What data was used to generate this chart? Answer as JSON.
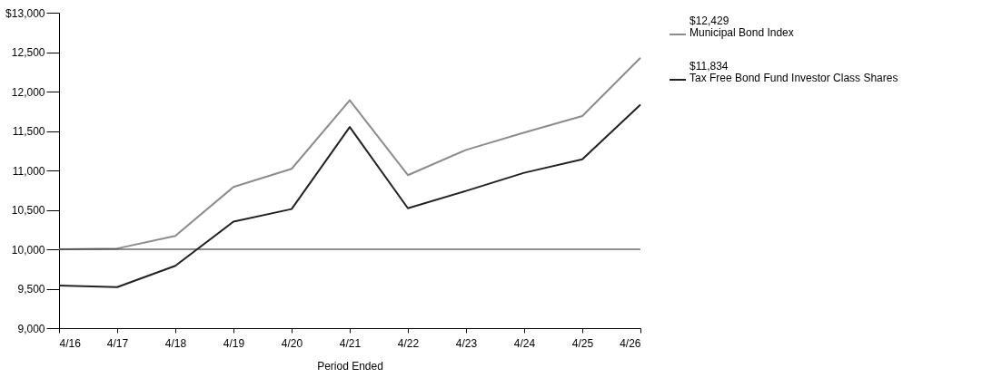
{
  "chart_data": {
    "type": "line",
    "xlabel": "Period Ended",
    "categories": [
      "4/16",
      "4/17",
      "4/18",
      "4/19",
      "4/20",
      "4/21",
      "4/22",
      "4/23",
      "4/24",
      "4/25",
      "4/26"
    ],
    "series": [
      {
        "name": "Municipal Bond Index",
        "color": "#8c8c8c",
        "values": [
          10000,
          10010,
          10170,
          10790,
          11020,
          11890,
          10940,
          11260,
          11480,
          11690,
          12429
        ]
      },
      {
        "name": "Tax Free Bond Fund Investor Class Shares",
        "color": "#222222",
        "values": [
          9540,
          9520,
          9790,
          10350,
          10510,
          11550,
          10520,
          10740,
          10970,
          11140,
          11834
        ]
      }
    ],
    "annotations": [
      "$12,429",
      "$11,834"
    ],
    "ylim": [
      9000,
      13000
    ],
    "yticks": [
      {
        "value": 9000,
        "label": "9,000"
      },
      {
        "value": 9500,
        "label": "9,500"
      },
      {
        "value": 10000,
        "label": "10,000"
      },
      {
        "value": 10500,
        "label": "10,500"
      },
      {
        "value": 11000,
        "label": "11,000"
      },
      {
        "value": 11500,
        "label": "11,500"
      },
      {
        "value": 12000,
        "label": "12,000"
      },
      {
        "value": 12500,
        "label": "12,500"
      },
      {
        "value": 13000,
        "label": "$13,000"
      }
    ],
    "ref_lines": [
      {
        "axis": "y",
        "value": 10000,
        "color": "#222222"
      }
    ],
    "grid": false,
    "legend": "top right",
    "marker": "none",
    "line_style": "solid"
  }
}
